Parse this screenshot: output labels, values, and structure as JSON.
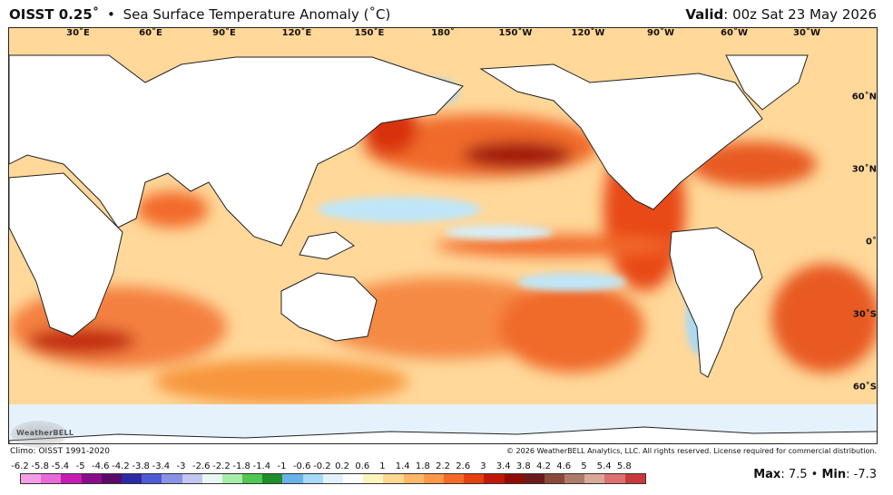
{
  "header": {
    "product": "OISST 0.25˚",
    "bullet": "•",
    "subtitle": "Sea Surface Temperature Anomaly (˚C)",
    "valid_label": "Valid",
    "valid_value": ": 00z Sat 23 May 2026"
  },
  "map": {
    "longitude_labels": [
      "30˚E",
      "60˚E",
      "90˚E",
      "120˚E",
      "150˚E",
      "180˚",
      "150˚W",
      "120˚W",
      "90˚W",
      "60˚W",
      "30˚W"
    ],
    "latitude_labels": [
      "60˚N",
      "30˚N",
      "0˚",
      "30˚S",
      "60˚S"
    ],
    "logo_text": "WeatherBELL"
  },
  "footer": {
    "climo": "Climo: OISST 1991-2020",
    "copyright": "© 2026 WeatherBELL Analytics, LLC. All rights reserved. License required for commercial distribution."
  },
  "scale": {
    "ticks": [
      "-6.2",
      "-5.8",
      "-5.4",
      "-5",
      "-4.6",
      "-4.2",
      "-3.8",
      "-3.4",
      "-3",
      "-2.6",
      "-2.2",
      "-1.8",
      "-1.4",
      "-1",
      "-0.6",
      "-0.2",
      "0.2",
      "0.6",
      "1",
      "1.4",
      "1.8",
      "2.2",
      "2.6",
      "3",
      "3.4",
      "3.8",
      "4.2",
      "4.6",
      "5",
      "5.4",
      "5.8"
    ],
    "colors": [
      "#f49ee6",
      "#e86ad8",
      "#c81ab4",
      "#8a0e8a",
      "#5a0a6a",
      "#2a2aa6",
      "#4e5ad6",
      "#8a92e6",
      "#c2c6f2",
      "#e8faf0",
      "#a6ecaa",
      "#4ec850",
      "#1e8e2a",
      "#68b2ec",
      "#a6daf6",
      "#dff3fb",
      "#ffffff",
      "#fff4c0",
      "#ffd890",
      "#ffb868",
      "#ff9848",
      "#f66a28",
      "#e64010",
      "#c21808",
      "#8e0e06",
      "#6a1a1a",
      "#8a4a3a",
      "#b07a6a",
      "#d8a898",
      "#e07070",
      "#c83a3a"
    ],
    "max_label": "Max",
    "max_value": ": 7.5",
    "min_label": "Min",
    "min_value": ": -7.3",
    "separator": "•"
  }
}
